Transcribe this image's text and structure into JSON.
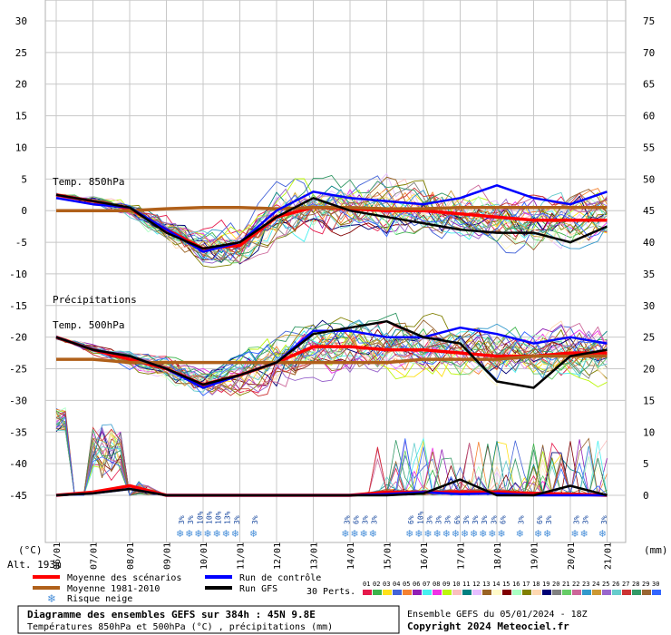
{
  "chart_data": {
    "type": "line",
    "title": "Diagramme des ensembles GEFS sur 384h : 45N 9.8E",
    "subtitle": "Températures 850hPa et 500hPa (°C) , précipitations (mm)",
    "source": "Ensemble GEFS du 05/01/2024 - 18Z",
    "copyright": "Copyright 2024 Meteociel.fr",
    "y_left_unit": "(°C)",
    "y_right_unit": "(mm)",
    "altitude": "Alt. 193m",
    "y_left_ticks": [
      30,
      25,
      20,
      15,
      10,
      5,
      0,
      -5,
      -10,
      -15,
      -20,
      -25,
      -30,
      -35,
      -40,
      -45
    ],
    "y_right_ticks": [
      75,
      70,
      65,
      60,
      55,
      50,
      45,
      40,
      35,
      30,
      25,
      20,
      15,
      10,
      5,
      0
    ],
    "ylim_left": [
      -45,
      30
    ],
    "ylim_right": [
      0,
      75
    ],
    "x_dates": [
      "06/01",
      "07/01",
      "08/01",
      "09/01",
      "10/01",
      "11/01",
      "12/01",
      "13/01",
      "14/01",
      "15/01",
      "16/01",
      "17/01",
      "18/01",
      "19/01",
      "20/01",
      "21/01"
    ],
    "annotations": {
      "t850": "Temp. 850hPa",
      "precip": "Précipitations",
      "t500": "Temp. 500hPa"
    },
    "snow_risk": [
      {
        "step": 0.0,
        "pct": "3%"
      },
      {
        "step": 0.25,
        "pct": "3%"
      },
      {
        "step": 0.5,
        "pct": "10%"
      },
      {
        "step": 0.75,
        "pct": "10%"
      },
      {
        "step": 1.0,
        "pct": "10%"
      },
      {
        "step": 1.25,
        "pct": "13%"
      },
      {
        "step": 1.5,
        "pct": "3%"
      },
      {
        "step": 2.0,
        "pct": "3%"
      },
      {
        "step": 4.5,
        "pct": "3%"
      },
      {
        "step": 4.75,
        "pct": "6%"
      },
      {
        "step": 5.0,
        "pct": "3%"
      },
      {
        "step": 5.25,
        "pct": "3%"
      },
      {
        "step": 6.25,
        "pct": "6%"
      },
      {
        "step": 6.5,
        "pct": "10%"
      },
      {
        "step": 6.75,
        "pct": "3%"
      },
      {
        "step": 7.0,
        "pct": "3%"
      },
      {
        "step": 7.25,
        "pct": "3%"
      },
      {
        "step": 7.5,
        "pct": "6%"
      },
      {
        "step": 7.75,
        "pct": "3%"
      },
      {
        "step": 8.0,
        "pct": "3%"
      },
      {
        "step": 8.25,
        "pct": "3%"
      },
      {
        "step": 8.5,
        "pct": "3%"
      },
      {
        "step": 8.75,
        "pct": "6%"
      },
      {
        "step": 9.25,
        "pct": "3%"
      },
      {
        "step": 9.75,
        "pct": "6%"
      },
      {
        "step": 10.0,
        "pct": "3%"
      },
      {
        "step": 10.75,
        "pct": "3%"
      },
      {
        "step": 11.0,
        "pct": "3%"
      },
      {
        "step": 11.5,
        "pct": "3%"
      }
    ],
    "series": [
      {
        "name": "Moyenne des scénarios",
        "color": "#ff0000",
        "t850": [
          2.5,
          1.5,
          0.3,
          -3,
          -6,
          -5.5,
          -1,
          0.5,
          0.3,
          0,
          0,
          -0.5,
          -1,
          -1.5,
          -1.5,
          -1.5
        ],
        "t500": [
          -20,
          -22,
          -23.5,
          -25,
          -27.5,
          -26,
          -24,
          -21.5,
          -21.5,
          -22,
          -22,
          -22.5,
          -23,
          -23,
          -22.5,
          -22.5
        ],
        "precip": [
          0,
          0.5,
          1.5,
          0,
          0,
          0,
          0,
          0,
          0,
          0.5,
          0.5,
          0.5,
          0.5,
          0.3,
          0.2,
          0
        ]
      },
      {
        "name": "Moyenne 1981-2010",
        "color": "#b0601a",
        "t850": [
          0,
          0,
          0,
          0.3,
          0.5,
          0.5,
          0.3,
          0.5,
          0.5,
          0.3,
          0.3,
          0.5,
          0.5,
          0.5,
          0.5,
          0.5
        ],
        "t500": [
          -23.5,
          -23.5,
          -24,
          -24,
          -24,
          -24,
          -24,
          -24,
          -24,
          -24,
          -23.5,
          -23.5,
          -23.5,
          -23,
          -23,
          -23
        ]
      },
      {
        "name": "Run de contrôle",
        "color": "#0000ff",
        "t850": [
          2,
          1,
          0.5,
          -3,
          -6.5,
          -5,
          0,
          3,
          2,
          1.5,
          1,
          2,
          4,
          2,
          1,
          3
        ],
        "t500": [
          -20,
          -22,
          -23,
          -25,
          -28,
          -26,
          -24,
          -19,
          -19,
          -20,
          -20,
          -18.5,
          -19.5,
          -21,
          -20,
          -21
        ],
        "precip": [
          0,
          0.3,
          1,
          0,
          0,
          0,
          0,
          0,
          0,
          0.2,
          0.5,
          0.2,
          0.3,
          0,
          0,
          0
        ]
      },
      {
        "name": "Run GFS",
        "color": "#000000",
        "t850": [
          2.5,
          1.5,
          0.5,
          -3.5,
          -6,
          -5,
          -1,
          2,
          0,
          -1,
          -2,
          -3,
          -3.5,
          -3.5,
          -5,
          -2.5
        ],
        "t500": [
          -20,
          -22,
          -23,
          -25,
          -27.5,
          -26,
          -24,
          -19.5,
          -18.5,
          -17.5,
          -20,
          -21,
          -27,
          -28,
          -23,
          -22
        ],
        "precip": [
          0,
          0.3,
          1,
          0,
          0,
          0,
          0,
          0,
          0,
          0,
          0.3,
          2.5,
          0,
          0,
          1.5,
          0
        ]
      }
    ],
    "legend": {
      "mean": "Moyenne des scénarios",
      "clim": "Moyenne 1981-2010",
      "snow": "Risque neige",
      "control": "Run de contrôle",
      "gfs": "Run GFS",
      "perts_label": "30 Perts."
    },
    "perturbation_ids": [
      "01",
      "02",
      "03",
      "04",
      "05",
      "06",
      "07",
      "08",
      "09",
      "10",
      "11",
      "12",
      "13",
      "14",
      "15",
      "16",
      "17",
      "18",
      "19",
      "20",
      "21",
      "22",
      "23",
      "24",
      "25",
      "26",
      "27",
      "28",
      "29",
      "30"
    ],
    "perturbation_colors": [
      "#e6194b",
      "#3cb44b",
      "#ffe119",
      "#4363d8",
      "#f58231",
      "#911eb4",
      "#46f0f0",
      "#f032e6",
      "#bcf60c",
      "#fabebe",
      "#008080",
      "#e6beff",
      "#9a6324",
      "#fffac8",
      "#800000",
      "#aaffc3",
      "#808000",
      "#ffd8b1",
      "#000075",
      "#808080",
      "#66cc66",
      "#cc6699",
      "#3399cc",
      "#cc9933",
      "#9966cc",
      "#66cccc",
      "#cc3333",
      "#339966",
      "#996633",
      "#3366ff"
    ]
  }
}
